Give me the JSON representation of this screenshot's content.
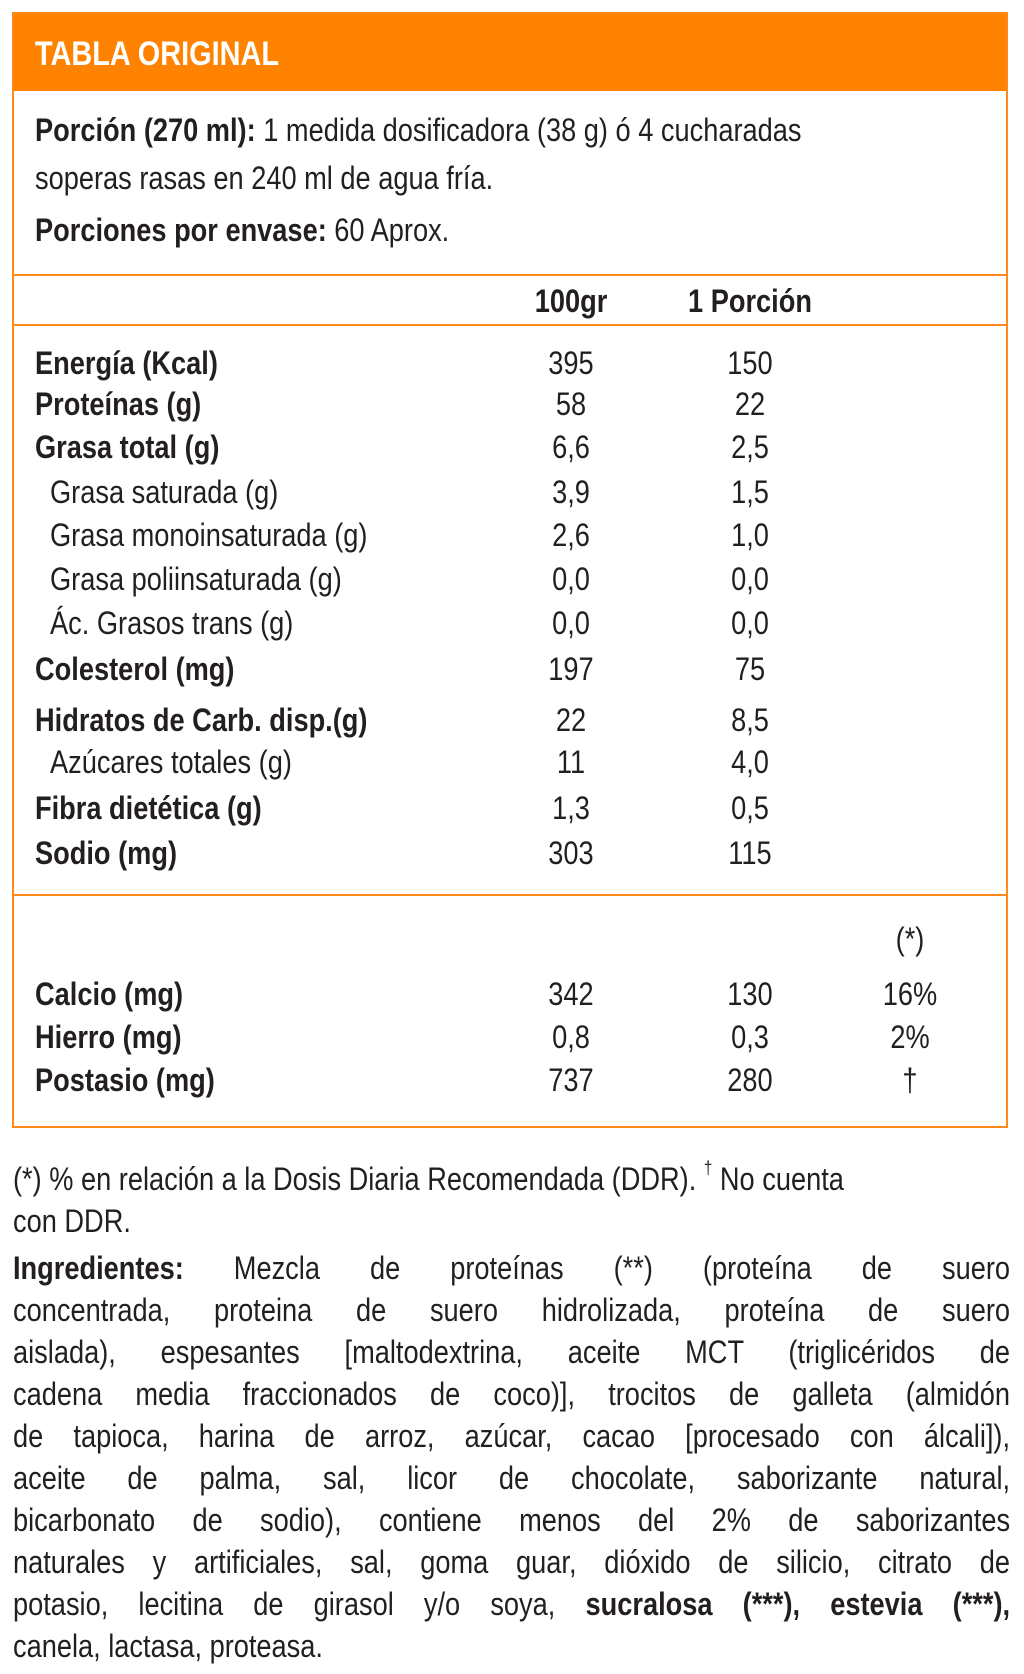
{
  "colors": {
    "accent": "#ff8200",
    "text": "#231f20"
  },
  "header": {
    "title": "TABLA ORIGINAL"
  },
  "portion": {
    "label": "Porción (270 ml):",
    "text_line1": "1 medida dosificadora (38 g) ó 4 cucharadas",
    "text_line2": "soperas rasas en 240 ml de agua fría.",
    "servings_label": "Porciones por envase:",
    "servings_value": "60 Aprox."
  },
  "columns": {
    "per100": "100gr",
    "perPortion": "1 Porción",
    "ddr": "(*)"
  },
  "rows": [
    {
      "label": "Energía (Kcal)",
      "per100": "395",
      "perPortion": "150",
      "bold": true
    },
    {
      "label": "Proteínas (g)",
      "per100": "58",
      "perPortion": "22",
      "bold": true
    },
    {
      "label": "Grasa total (g)",
      "per100": "6,6",
      "perPortion": "2,5",
      "bold": true
    },
    {
      "label": "Grasa saturada (g)",
      "per100": "3,9",
      "perPortion": "1,5",
      "bold": false
    },
    {
      "label": "Grasa monoinsaturada (g)",
      "per100": "2,6",
      "perPortion": "1,0",
      "bold": false
    },
    {
      "label": "Grasa poliinsaturada (g)",
      "per100": "0,0",
      "perPortion": "0,0",
      "bold": false
    },
    {
      "label": "Ác. Grasos trans (g)",
      "per100": "0,0",
      "perPortion": "0,0",
      "bold": false
    },
    {
      "label": "Colesterol (mg)",
      "per100": "197",
      "perPortion": "75",
      "bold": true
    },
    {
      "label": "Hidratos de Carb. disp.(g)",
      "per100": "22",
      "perPortion": "8,5",
      "bold": true
    },
    {
      "label": "Azúcares totales (g)",
      "per100": "11",
      "perPortion": "4,0",
      "bold": false
    },
    {
      "label": "Fibra dietética (g)",
      "per100": "1,3",
      "perPortion": "0,5",
      "bold": true
    },
    {
      "label": "Sodio (mg)",
      "per100": "303",
      "perPortion": "115",
      "bold": true
    }
  ],
  "minerals": [
    {
      "label": "Calcio (mg)",
      "per100": "342",
      "perPortion": "130",
      "ddr": "16%"
    },
    {
      "label": "Hierro (mg)",
      "per100": "0,8",
      "perPortion": "0,3",
      "ddr": "2%"
    },
    {
      "label": "Postasio (mg)",
      "per100": "737",
      "perPortion": "280",
      "ddr": "†"
    }
  ],
  "footnote": {
    "line1": "(*) % en relación a la Dosis Diaria Recomendada (DDR).",
    "dagger": "†",
    "line1_end": " No cuenta",
    "line2": "con DDR."
  },
  "ingredients": {
    "label": "Ingredientes:",
    "line1": "Mezcla de proteínas (**) (proteína de suero",
    "lines": [
      "concentrada, proteina de suero hidrolizada, proteína de suero",
      "aislada), espesantes [maltodextrina, aceite MCT (triglicéridos de",
      "cadena media fraccionados de coco)], trocitos de galleta (almidón",
      "de tapioca, harina de arroz, azúcar, cacao [procesado con álcali]),",
      "aceite de palma, sal, licor de chocolate, saborizante natural,",
      "bicarbonato de sodio), contiene menos del 2% de saborizantes",
      "naturales y artificiales, sal, goma guar, dióxido de silicio, citrato de"
    ],
    "line9_start": "potasio, lecitina de girasol y/o soya,",
    "line9_bold": "sucralosa (***), estevia (***),",
    "last": "canela, lactasa, proteasa."
  }
}
